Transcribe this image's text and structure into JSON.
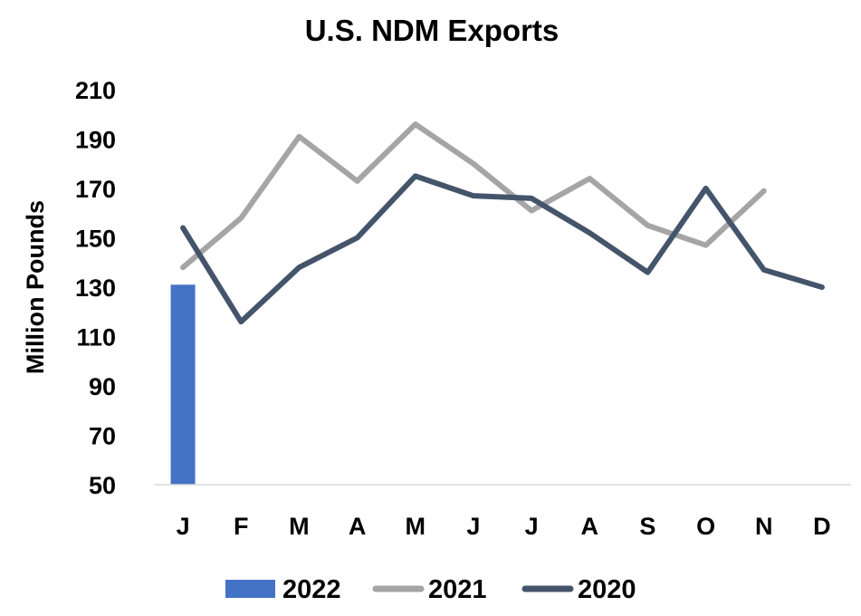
{
  "chart_data": {
    "type": "bar+line",
    "title": "U.S. NDM Exports",
    "ylabel": "Million Pounds",
    "xlabel": "",
    "categories": [
      "J",
      "F",
      "M",
      "A",
      "M",
      "J",
      "J",
      "A",
      "S",
      "O",
      "N",
      "D"
    ],
    "yticks": [
      "210",
      "190",
      "170",
      "150",
      "130",
      "110",
      "90",
      "70",
      "50"
    ],
    "ylim": [
      50,
      210
    ],
    "grid": false,
    "legend_position": "bottom",
    "series": [
      {
        "name": "2022",
        "kind": "bar",
        "color": "#4472C4",
        "values": [
          131,
          null,
          null,
          null,
          null,
          null,
          null,
          null,
          null,
          null,
          null,
          null
        ]
      },
      {
        "name": "2021",
        "kind": "line",
        "color": "#A5A5A5",
        "values": [
          138,
          158,
          191,
          173,
          196,
          180,
          161,
          174,
          155,
          147,
          169,
          null
        ]
      },
      {
        "name": "2020",
        "kind": "line",
        "color": "#44546A",
        "values": [
          154,
          116,
          138,
          150,
          175,
          167,
          166,
          152,
          136,
          170,
          137,
          130
        ]
      }
    ]
  }
}
